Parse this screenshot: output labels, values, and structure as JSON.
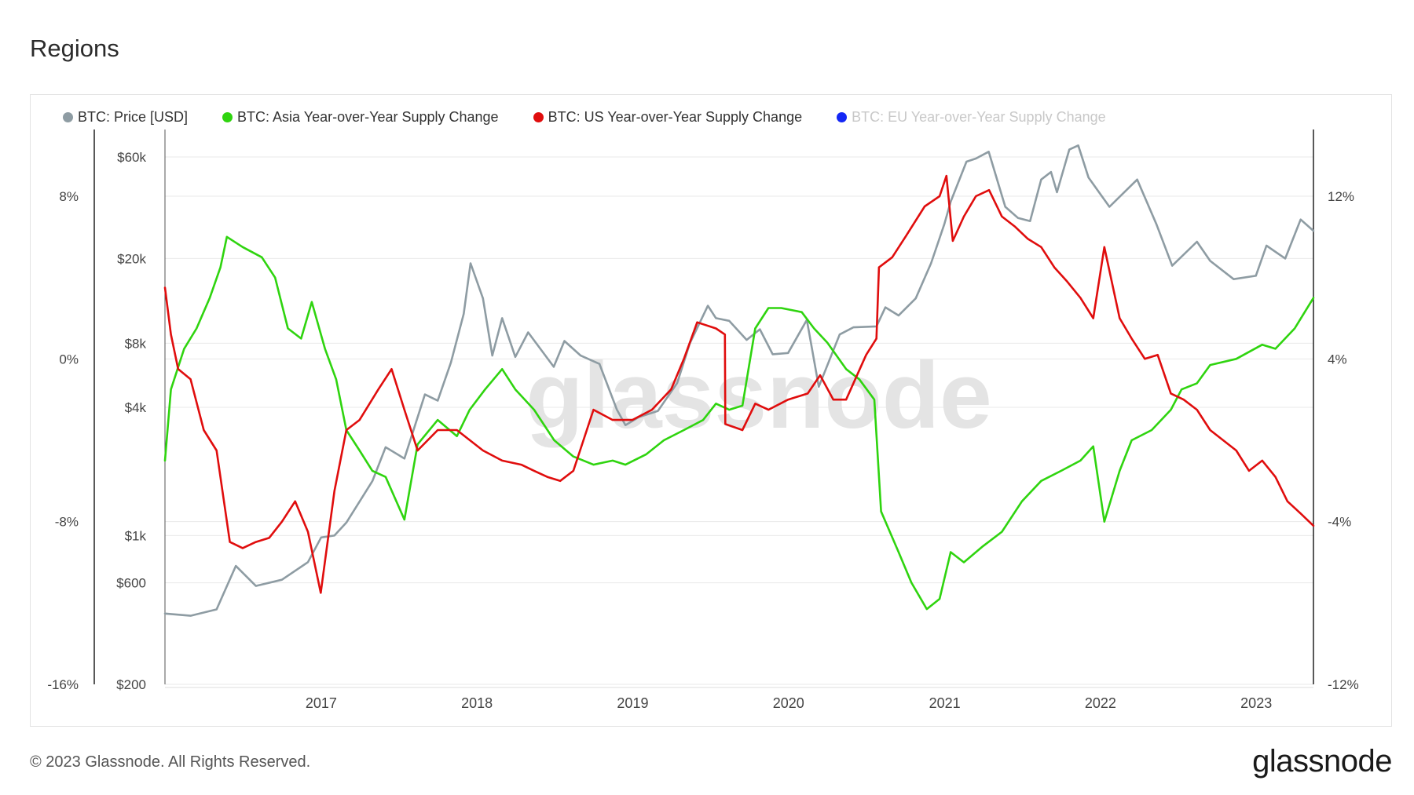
{
  "title": "Regions",
  "footer": {
    "copyright": "© 2023 Glassnode. All Rights Reserved.",
    "brand": "glassnode"
  },
  "watermark": "glassnode",
  "colors": {
    "price": "#8e9ca3",
    "asia": "#2fd40f",
    "us": "#e00d0d",
    "eu": "#1427f5",
    "grid": "#e9e9e9"
  },
  "chart_data": {
    "type": "line",
    "title": "Regions",
    "legend_position": "top-left",
    "grid": true,
    "x_ticks": [
      "2017",
      "2018",
      "2019",
      "2020",
      "2021",
      "2022",
      "2023"
    ],
    "x_range": [
      "2016-01-01",
      "2023-05-15"
    ],
    "axes": {
      "left_percent": {
        "ticks": [
          "8%",
          "0%",
          "-8%",
          "-16%"
        ],
        "range": [
          -16,
          8
        ]
      },
      "left_price": {
        "ticks": [
          "$60k",
          "$20k",
          "$8k",
          "$4k",
          "$1k",
          "$600",
          "$200"
        ],
        "scale": "log",
        "range": [
          200,
          60000
        ]
      },
      "right_percent": {
        "ticks": [
          "12%",
          "4%",
          "-4%",
          "-12%"
        ],
        "range": [
          -12,
          12
        ]
      }
    },
    "series": [
      {
        "name": "BTC: Price [USD]",
        "axis": "left_price",
        "visible": true,
        "points": [
          [
            "2016-01-01",
            430
          ],
          [
            "2016-03-01",
            420
          ],
          [
            "2016-05-01",
            450
          ],
          [
            "2016-06-15",
            720
          ],
          [
            "2016-08-01",
            580
          ],
          [
            "2016-10-01",
            620
          ],
          [
            "2016-12-01",
            750
          ],
          [
            "2017-01-01",
            980
          ],
          [
            "2017-02-01",
            1000
          ],
          [
            "2017-03-01",
            1150
          ],
          [
            "2017-05-01",
            1800
          ],
          [
            "2017-06-01",
            2600
          ],
          [
            "2017-07-15",
            2300
          ],
          [
            "2017-09-01",
            4600
          ],
          [
            "2017-10-01",
            4300
          ],
          [
            "2017-11-01",
            6500
          ],
          [
            "2017-12-01",
            11000
          ],
          [
            "2017-12-17",
            19000
          ],
          [
            "2018-01-15",
            13000
          ],
          [
            "2018-02-06",
            7000
          ],
          [
            "2018-03-01",
            10500
          ],
          [
            "2018-04-01",
            6900
          ],
          [
            "2018-05-01",
            9000
          ],
          [
            "2018-06-30",
            6200
          ],
          [
            "2018-07-25",
            8200
          ],
          [
            "2018-09-01",
            7000
          ],
          [
            "2018-10-15",
            6400
          ],
          [
            "2018-11-25",
            3900
          ],
          [
            "2018-12-15",
            3300
          ],
          [
            "2019-01-15",
            3600
          ],
          [
            "2019-03-01",
            3850
          ],
          [
            "2019-04-15",
            5200
          ],
          [
            "2019-05-15",
            8000
          ],
          [
            "2019-06-26",
            12000
          ],
          [
            "2019-07-15",
            10500
          ],
          [
            "2019-08-15",
            10200
          ],
          [
            "2019-09-25",
            8300
          ],
          [
            "2019-10-26",
            9300
          ],
          [
            "2019-11-25",
            7100
          ],
          [
            "2019-12-31",
            7200
          ],
          [
            "2020-02-13",
            10300
          ],
          [
            "2020-03-12",
            5000
          ],
          [
            "2020-04-30",
            8800
          ],
          [
            "2020-06-01",
            9500
          ],
          [
            "2020-07-25",
            9600
          ],
          [
            "2020-08-15",
            11800
          ],
          [
            "2020-09-15",
            10800
          ],
          [
            "2020-10-25",
            13000
          ],
          [
            "2020-11-30",
            19000
          ],
          [
            "2020-12-31",
            29000
          ],
          [
            "2021-01-15",
            37000
          ],
          [
            "2021-02-21",
            57000
          ],
          [
            "2021-03-15",
            59000
          ],
          [
            "2021-04-14",
            63500
          ],
          [
            "2021-05-23",
            35000
          ],
          [
            "2021-06-22",
            31000
          ],
          [
            "2021-07-20",
            30000
          ],
          [
            "2021-08-15",
            47000
          ],
          [
            "2021-09-07",
            51000
          ],
          [
            "2021-09-21",
            41000
          ],
          [
            "2021-10-20",
            65000
          ],
          [
            "2021-11-10",
            68000
          ],
          [
            "2021-12-04",
            48000
          ],
          [
            "2022-01-22",
            35000
          ],
          [
            "2022-03-28",
            47000
          ],
          [
            "2022-05-12",
            29000
          ],
          [
            "2022-06-18",
            18500
          ],
          [
            "2022-08-15",
            24000
          ],
          [
            "2022-09-15",
            19500
          ],
          [
            "2022-11-09",
            16000
          ],
          [
            "2022-12-31",
            16600
          ],
          [
            "2023-01-25",
            23000
          ],
          [
            "2023-03-10",
            20000
          ],
          [
            "2023-04-15",
            30500
          ],
          [
            "2023-05-15",
            27000
          ]
        ]
      },
      {
        "name": "BTC: Asia Year-over-Year Supply Change",
        "axis": "left_percent",
        "visible": true,
        "points": [
          [
            "2016-01-01",
            -5.0
          ],
          [
            "2016-01-15",
            -1.5
          ],
          [
            "2016-02-15",
            0.5
          ],
          [
            "2016-03-15",
            1.5
          ],
          [
            "2016-04-15",
            3.0
          ],
          [
            "2016-05-10",
            4.5
          ],
          [
            "2016-05-25",
            6.0
          ],
          [
            "2016-07-01",
            5.5
          ],
          [
            "2016-08-15",
            5.0
          ],
          [
            "2016-09-15",
            4.0
          ],
          [
            "2016-10-15",
            1.5
          ],
          [
            "2016-11-15",
            1.0
          ],
          [
            "2016-12-10",
            2.8
          ],
          [
            "2017-01-10",
            0.5
          ],
          [
            "2017-02-05",
            -1.0
          ],
          [
            "2017-03-01",
            -3.5
          ],
          [
            "2017-04-01",
            -4.5
          ],
          [
            "2017-05-01",
            -5.5
          ],
          [
            "2017-06-01",
            -5.8
          ],
          [
            "2017-07-15",
            -7.9
          ],
          [
            "2017-08-15",
            -4.2
          ],
          [
            "2017-10-01",
            -3.0
          ],
          [
            "2017-11-15",
            -3.8
          ],
          [
            "2017-12-15",
            -2.5
          ],
          [
            "2018-01-20",
            -1.5
          ],
          [
            "2018-03-01",
            -0.5
          ],
          [
            "2018-04-01",
            -1.5
          ],
          [
            "2018-05-15",
            -2.5
          ],
          [
            "2018-07-01",
            -4.0
          ],
          [
            "2018-08-15",
            -4.8
          ],
          [
            "2018-10-01",
            -5.2
          ],
          [
            "2018-11-15",
            -5.0
          ],
          [
            "2018-12-15",
            -5.2
          ],
          [
            "2019-02-01",
            -4.7
          ],
          [
            "2019-03-15",
            -4.0
          ],
          [
            "2019-05-01",
            -3.5
          ],
          [
            "2019-06-15",
            -3.0
          ],
          [
            "2019-07-15",
            -2.2
          ],
          [
            "2019-08-15",
            -2.5
          ],
          [
            "2019-09-15",
            -2.3
          ],
          [
            "2019-10-15",
            1.5
          ],
          [
            "2019-11-15",
            2.5
          ],
          [
            "2019-12-15",
            2.5
          ],
          [
            "2020-02-01",
            2.3
          ],
          [
            "2020-03-01",
            1.5
          ],
          [
            "2020-04-01",
            0.8
          ],
          [
            "2020-05-15",
            -0.5
          ],
          [
            "2020-06-15",
            -1.0
          ],
          [
            "2020-07-20",
            -2.0
          ],
          [
            "2020-08-05",
            -7.5
          ],
          [
            "2020-09-15",
            -9.5
          ],
          [
            "2020-10-15",
            -11.0
          ],
          [
            "2020-11-20",
            -12.3
          ],
          [
            "2020-12-20",
            -11.8
          ],
          [
            "2021-01-15",
            -9.5
          ],
          [
            "2021-02-15",
            -10.0
          ],
          [
            "2021-04-01",
            -9.2
          ],
          [
            "2021-05-15",
            -8.5
          ],
          [
            "2021-07-01",
            -7.0
          ],
          [
            "2021-08-15",
            -6.0
          ],
          [
            "2021-10-01",
            -5.5
          ],
          [
            "2021-11-15",
            -5.0
          ],
          [
            "2021-12-15",
            -4.3
          ],
          [
            "2022-01-10",
            -8.0
          ],
          [
            "2022-02-15",
            -5.5
          ],
          [
            "2022-03-15",
            -4.0
          ],
          [
            "2022-05-01",
            -3.5
          ],
          [
            "2022-06-15",
            -2.5
          ],
          [
            "2022-07-10",
            -1.5
          ],
          [
            "2022-08-15",
            -1.2
          ],
          [
            "2022-09-15",
            -0.3
          ],
          [
            "2022-11-15",
            0.0
          ],
          [
            "2023-01-15",
            0.7
          ],
          [
            "2023-02-15",
            0.5
          ],
          [
            "2023-04-01",
            1.5
          ],
          [
            "2023-05-15",
            3.0
          ]
        ]
      },
      {
        "name": "BTC: US Year-over-Year Supply Change",
        "axis": "right_percent",
        "visible": true,
        "points": [
          [
            "2016-01-01",
            7.5
          ],
          [
            "2016-01-15",
            5.2
          ],
          [
            "2016-02-01",
            3.5
          ],
          [
            "2016-03-01",
            3.0
          ],
          [
            "2016-04-01",
            0.5
          ],
          [
            "2016-05-01",
            -0.5
          ],
          [
            "2016-06-01",
            -5.0
          ],
          [
            "2016-07-01",
            -5.3
          ],
          [
            "2016-08-01",
            -5.0
          ],
          [
            "2016-09-01",
            -4.8
          ],
          [
            "2016-10-01",
            -4.0
          ],
          [
            "2016-11-01",
            -3.0
          ],
          [
            "2016-12-01",
            -4.5
          ],
          [
            "2016-12-31",
            -7.5
          ],
          [
            "2017-02-01",
            -2.5
          ],
          [
            "2017-03-01",
            0.5
          ],
          [
            "2017-04-01",
            1.0
          ],
          [
            "2017-05-15",
            2.5
          ],
          [
            "2017-06-15",
            3.5
          ],
          [
            "2017-07-15",
            1.5
          ],
          [
            "2017-08-15",
            -0.5
          ],
          [
            "2017-10-01",
            0.5
          ],
          [
            "2017-11-15",
            0.5
          ],
          [
            "2018-01-15",
            -0.5
          ],
          [
            "2018-03-01",
            -1.0
          ],
          [
            "2018-04-15",
            -1.2
          ],
          [
            "2018-05-15",
            -1.5
          ],
          [
            "2018-06-15",
            -1.8
          ],
          [
            "2018-07-15",
            -2.0
          ],
          [
            "2018-08-15",
            -1.5
          ],
          [
            "2018-10-01",
            1.5
          ],
          [
            "2018-11-15",
            1.0
          ],
          [
            "2018-12-31",
            1.0
          ],
          [
            "2019-02-15",
            1.5
          ],
          [
            "2019-04-01",
            2.5
          ],
          [
            "2019-05-01",
            4.0
          ],
          [
            "2019-06-01",
            5.8
          ],
          [
            "2019-07-15",
            5.5
          ],
          [
            "2019-08-05",
            5.2
          ],
          [
            "2019-08-06",
            0.8
          ],
          [
            "2019-09-15",
            0.5
          ],
          [
            "2019-10-15",
            1.8
          ],
          [
            "2019-11-15",
            1.5
          ],
          [
            "2019-12-31",
            2.0
          ],
          [
            "2020-02-15",
            2.3
          ],
          [
            "2020-03-15",
            3.2
          ],
          [
            "2020-04-15",
            2.0
          ],
          [
            "2020-05-15",
            2.0
          ],
          [
            "2020-07-01",
            4.2
          ],
          [
            "2020-07-25",
            5.0
          ],
          [
            "2020-07-31",
            8.5
          ],
          [
            "2020-08-31",
            9.0
          ],
          [
            "2020-10-01",
            10.0
          ],
          [
            "2020-11-15",
            11.5
          ],
          [
            "2020-12-20",
            12.0
          ],
          [
            "2021-01-05",
            13.0
          ],
          [
            "2021-01-20",
            9.8
          ],
          [
            "2021-02-15",
            11.0
          ],
          [
            "2021-03-15",
            12.0
          ],
          [
            "2021-04-15",
            12.3
          ],
          [
            "2021-05-15",
            11.0
          ],
          [
            "2021-06-15",
            10.5
          ],
          [
            "2021-07-15",
            9.9
          ],
          [
            "2021-08-15",
            9.5
          ],
          [
            "2021-09-15",
            8.5
          ],
          [
            "2021-10-15",
            7.8
          ],
          [
            "2021-11-15",
            7.0
          ],
          [
            "2021-12-15",
            6.0
          ],
          [
            "2022-01-10",
            9.5
          ],
          [
            "2022-02-15",
            6.0
          ],
          [
            "2022-03-15",
            5.0
          ],
          [
            "2022-04-15",
            4.0
          ],
          [
            "2022-05-15",
            4.2
          ],
          [
            "2022-06-15",
            2.3
          ],
          [
            "2022-07-15",
            2.0
          ],
          [
            "2022-08-15",
            1.5
          ],
          [
            "2022-09-15",
            0.5
          ],
          [
            "2022-11-15",
            -0.5
          ],
          [
            "2022-12-15",
            -1.5
          ],
          [
            "2023-01-15",
            -1.0
          ],
          [
            "2023-02-15",
            -1.8
          ],
          [
            "2023-03-15",
            -3.0
          ],
          [
            "2023-04-15",
            -3.6
          ],
          [
            "2023-05-15",
            -4.2
          ]
        ]
      },
      {
        "name": "BTC: EU Year-over-Year Supply Change",
        "axis": "right_percent",
        "visible": false,
        "points": []
      }
    ]
  }
}
